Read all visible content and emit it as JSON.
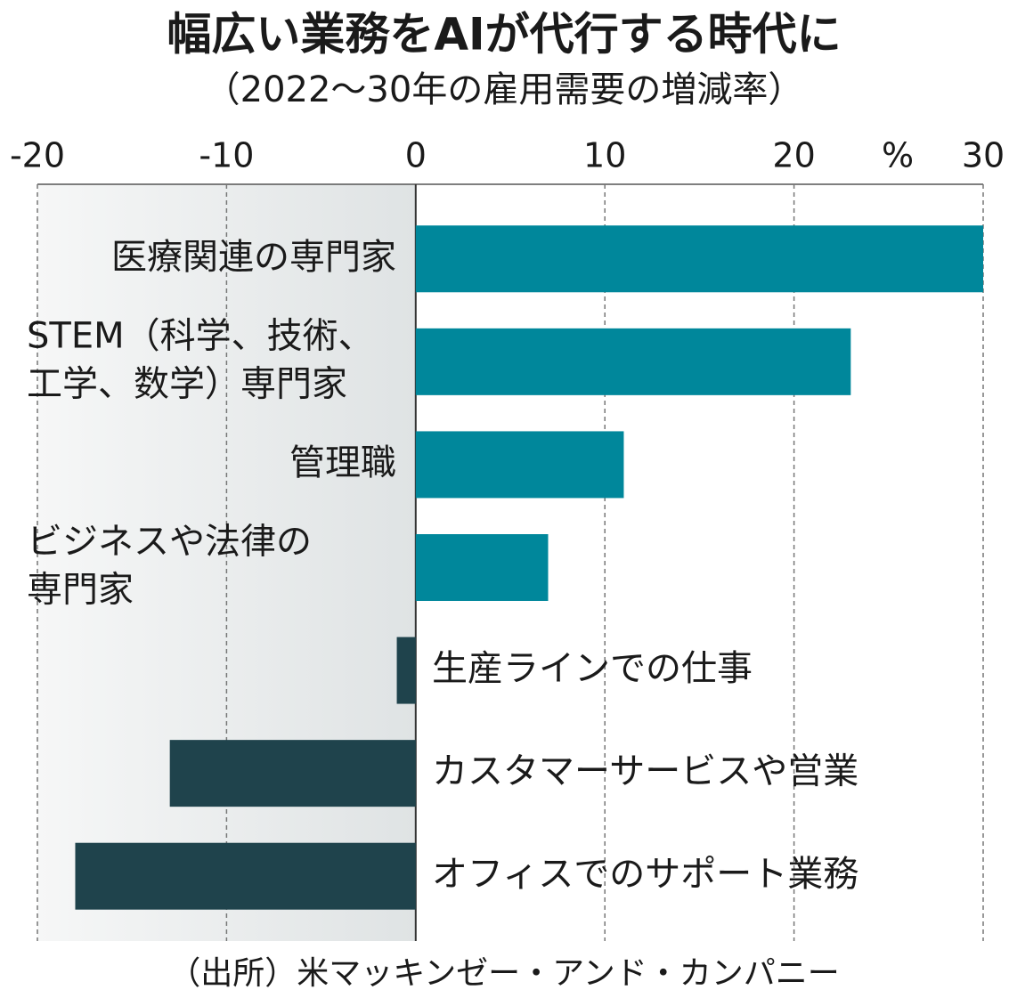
{
  "chart_data": {
    "type": "barh",
    "title": "幅広い業務をAIが代行する時代に",
    "subtitle": "（2022～30年の雇用需要の増減率）",
    "unit": "%",
    "source": "（出所）米マッキンゼー・アンド・カンパニー",
    "categories": [
      "医療関連の専門家",
      "STEM（科学、技術、\n工学、数学）専門家",
      "管理職",
      "ビジネスや法律の\n専門家",
      "生産ラインでの仕事",
      "カスタマーサービスや営業",
      "オフィスでのサポート業務"
    ],
    "values": [
      30,
      23,
      11,
      7,
      -1,
      -13,
      -18
    ],
    "colors": [
      "#00879b",
      "#00879b",
      "#00879b",
      "#00879b",
      "#1f434c",
      "#1f434c",
      "#1f434c"
    ],
    "xlim": [
      -20,
      30
    ],
    "xticks": [
      -20,
      -10,
      0,
      10,
      20,
      30
    ],
    "grid": true
  }
}
